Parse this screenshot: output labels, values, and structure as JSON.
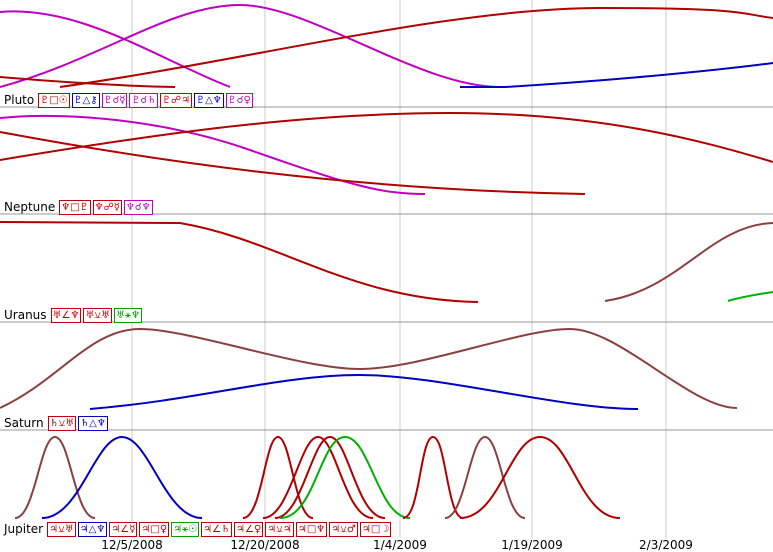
{
  "rows": [
    {
      "label": "Pluto",
      "aspects": [
        {
          "text": "♇□☉",
          "color": "#c00000"
        },
        {
          "text": "♇△⚷",
          "color": "#0000c0"
        },
        {
          "text": "♇☌☿",
          "color": "#c000c0"
        },
        {
          "text": "♇☌♄",
          "color": "#c000c0"
        },
        {
          "text": "♇☍♃",
          "color": "#c00000"
        },
        {
          "text": "♇△♆",
          "color": "#0000c0"
        },
        {
          "text": "♇☌♀",
          "color": "#c000c0"
        }
      ]
    },
    {
      "label": "Neptune",
      "aspects": [
        {
          "text": "♆□♇",
          "color": "#c00000"
        },
        {
          "text": "♆☍☿",
          "color": "#c00000"
        },
        {
          "text": "♆☌♆",
          "color": "#c000c0"
        }
      ]
    },
    {
      "label": "Uranus",
      "aspects": [
        {
          "text": "♅∠♆",
          "color": "#c00000"
        },
        {
          "text": "♅⚺♅",
          "color": "#c00000"
        },
        {
          "text": "♅⚹♆",
          "color": "#00a000"
        }
      ]
    },
    {
      "label": "Saturn",
      "aspects": [
        {
          "text": "♄⚺♅",
          "color": "#c00000"
        },
        {
          "text": "♄△♆",
          "color": "#0000c0"
        }
      ]
    },
    {
      "label": "Jupiter",
      "aspects": [
        {
          "text": "♃⚺♅",
          "color": "#c00000"
        },
        {
          "text": "♃△♆",
          "color": "#0000c0"
        },
        {
          "text": "♃∠☿",
          "color": "#c00000"
        },
        {
          "text": "♃□♀",
          "color": "#c00000"
        },
        {
          "text": "♃⚹☉",
          "color": "#00a000"
        },
        {
          "text": "♃∠♄",
          "color": "#c00000"
        },
        {
          "text": "♃∠♀",
          "color": "#c00000"
        },
        {
          "text": "♃⚺♃",
          "color": "#c00000"
        },
        {
          "text": "♃□♆",
          "color": "#c00000"
        },
        {
          "text": "♃⚺♂",
          "color": "#c00000"
        },
        {
          "text": "♃□☽",
          "color": "#c00000"
        }
      ]
    }
  ],
  "axis": {
    "dates": [
      "12/5/2008",
      "12/20/2008",
      "1/4/2009",
      "1/19/2009",
      "2/3/2009"
    ]
  }
}
